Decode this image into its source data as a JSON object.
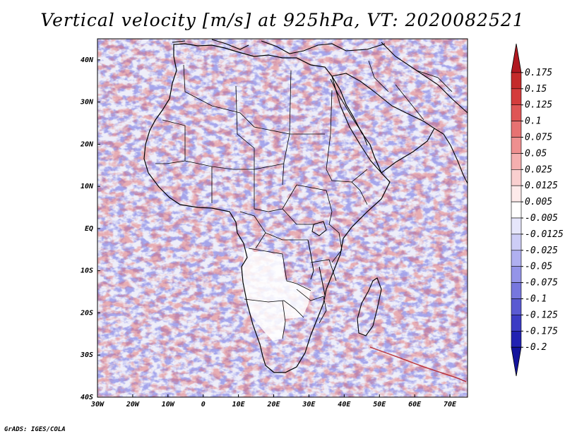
{
  "title": "Vertical velocity [m/s] at 925hPa, VT: 2020082521",
  "footer": "GrADS: IGES/COLA",
  "map": {
    "lon_range": [
      -30,
      75
    ],
    "lat_range": [
      -40,
      45
    ],
    "x_tick_labels": [
      "30W",
      "20W",
      "10W",
      "0",
      "10E",
      "20E",
      "30E",
      "40E",
      "50E",
      "60E",
      "70E"
    ],
    "x_tick_values": [
      -30,
      -20,
      -10,
      0,
      10,
      20,
      30,
      40,
      50,
      60,
      70
    ],
    "y_tick_labels": [
      "40S",
      "30S",
      "20S",
      "10S",
      "EQ",
      "10N",
      "20N",
      "30N",
      "40N"
    ],
    "y_tick_values": [
      -40,
      -30,
      -20,
      -10,
      0,
      10,
      20,
      30,
      40
    ],
    "field": "Vertical velocity",
    "level": "925hPa",
    "valid_time": "2020082521"
  },
  "colorbar": {
    "labels": [
      "0.175",
      "0.15",
      "0.125",
      "0.1",
      "0.075",
      "0.05",
      "0.025",
      "0.0125",
      "0.005",
      "-0.005",
      "-0.0125",
      "-0.025",
      "-0.05",
      "-0.075",
      "-0.1",
      "-0.125",
      "-0.175",
      "-0.2"
    ],
    "colors": [
      "#b01820",
      "#c42a2a",
      "#d43c3c",
      "#df5656",
      "#e77272",
      "#ee8f8f",
      "#f4afaf",
      "#f9cfcf",
      "#fdeaea",
      "#ffffff",
      "#e6e6fb",
      "#cdcdf6",
      "#b0b0f0",
      "#9494e8",
      "#7777de",
      "#5a5ad2",
      "#3c3cc4",
      "#2222b2",
      "#14149c"
    ]
  },
  "colors": {
    "ocean_bg": "#eeeef9",
    "land_bg": "#f7f0f2",
    "dry_region": "#ffffff",
    "outline": "#000000"
  }
}
